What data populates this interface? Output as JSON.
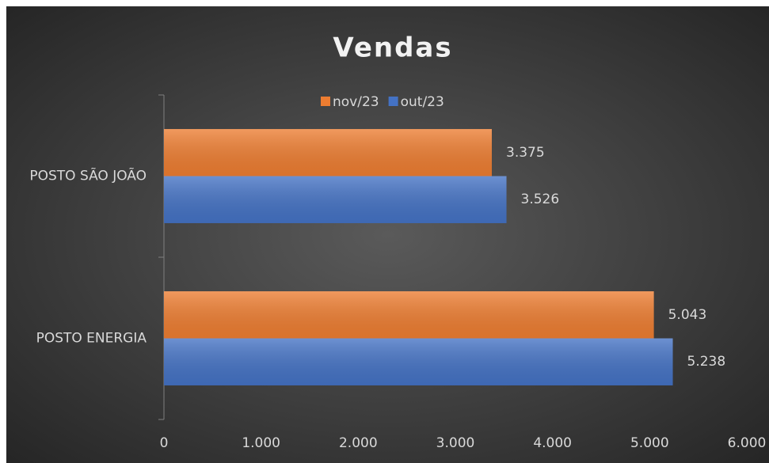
{
  "chart_data": {
    "type": "bar",
    "orientation": "horizontal",
    "title": "Vendas",
    "categories": [
      "POSTO SÃO JOÃO",
      "POSTO ENERGIA"
    ],
    "series": [
      {
        "name": "nov/23",
        "color": "#ed7d31",
        "values": [
          3375,
          5043
        ],
        "value_labels": [
          "3.375",
          "5.043"
        ]
      },
      {
        "name": "out/23",
        "color": "#4472c4",
        "values": [
          3526,
          5238
        ],
        "value_labels": [
          "3.526",
          "5.238"
        ]
      }
    ],
    "xlim": [
      0,
      6000
    ],
    "xticks": [
      0,
      {
        "value": 1000,
        "label": "1.000"
      },
      {
        "value": 2000,
        "label": "2.000"
      },
      {
        "value": 3000,
        "label": "3.000"
      },
      {
        "value": 4000,
        "label": "4.000"
      },
      {
        "value": 5000,
        "label": "5.000"
      },
      {
        "value": 6000,
        "label": "6.000"
      }
    ],
    "legend": "top",
    "grid": false
  }
}
